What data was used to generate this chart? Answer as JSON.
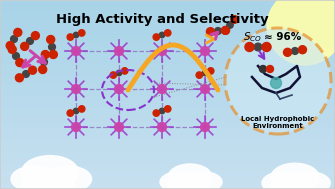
{
  "title": "High Activity and Selectivity",
  "selectivity_val": "≈ 96%",
  "local_label": "Local Hydrophobic\nEnvironment",
  "bg_color_top": "#a8d4e8",
  "bg_color_bottom": "#c5e0ef",
  "sun_color": "#ffffaa",
  "border_color": "#cccccc",
  "title_color": "#000000",
  "orange_arrow_color": "#f5a623",
  "pink_arrow_color": "#cc44aa",
  "purple_arrow_color": "#8833cc",
  "dashed_circle_color": "#e8881a",
  "figsize": [
    3.35,
    1.89
  ],
  "dpi": 100
}
